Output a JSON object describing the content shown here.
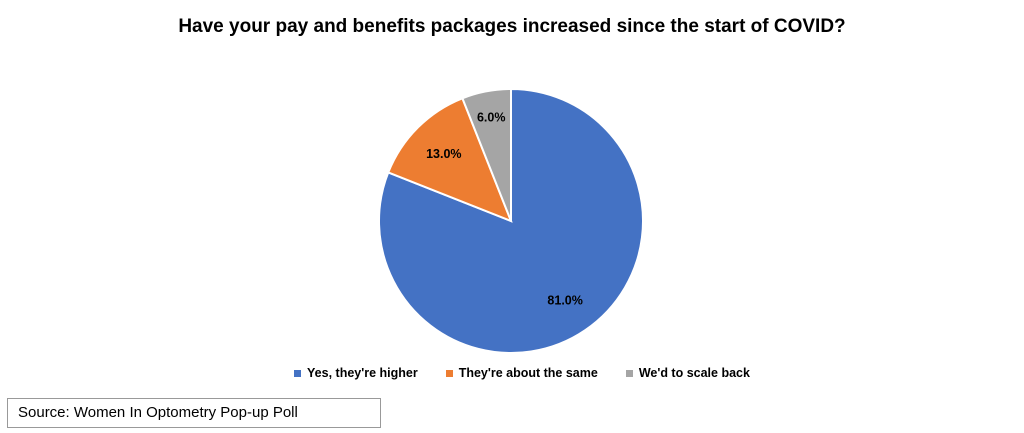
{
  "chart_data": {
    "type": "pie",
    "title": "Have your pay and benefits packages increased since the start of COVID?",
    "slices": [
      {
        "label": "Yes, they're higher",
        "value": 81.0,
        "display": "81.0%",
        "color": "#4472c4"
      },
      {
        "label": "They're about the same",
        "value": 13.0,
        "display": "13.0%",
        "color": "#ed7d31"
      },
      {
        "label": "We'd to scale back",
        "value": 6.0,
        "display": "6.0%",
        "color": "#a5a5a5"
      }
    ],
    "legend_position": "bottom"
  },
  "source": "Source: Women In Optometry Pop-up Poll"
}
